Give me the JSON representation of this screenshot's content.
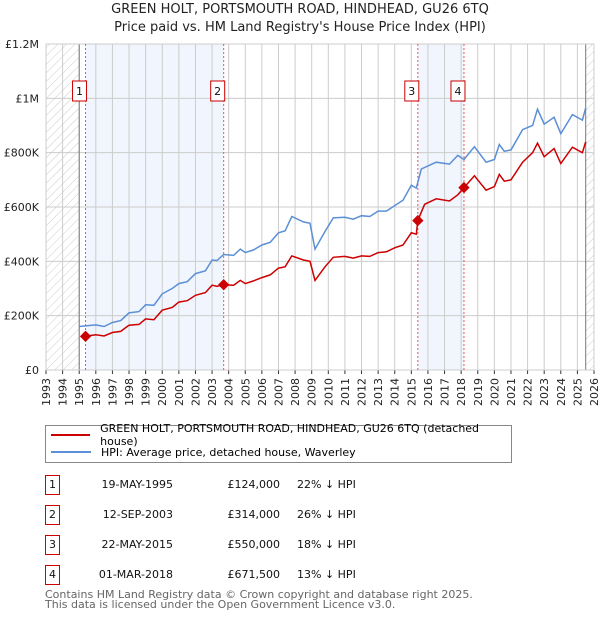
{
  "chart_data": {
    "type": "line",
    "title": "GREEN HOLT, PORTSMOUTH ROAD, HINDHEAD, GU26 6TQ",
    "subtitle": "Price paid vs. HM Land Registry's House Price Index (HPI)",
    "xlim": [
      1993,
      2026
    ],
    "ylim": [
      0,
      1200000
    ],
    "x_ticks": [
      "1993",
      "1994",
      "1995",
      "1996",
      "1997",
      "1998",
      "1999",
      "2000",
      "2001",
      "2002",
      "2003",
      "2004",
      "2005",
      "2006",
      "2007",
      "2008",
      "2009",
      "2010",
      "2011",
      "2012",
      "2013",
      "2014",
      "2015",
      "2016",
      "2017",
      "2018",
      "2019",
      "2020",
      "2021",
      "2022",
      "2023",
      "2024",
      "2025",
      "2026"
    ],
    "y_ticks": [
      {
        "v": 0,
        "label": "£0"
      },
      {
        "v": 200000,
        "label": "£200K"
      },
      {
        "v": 400000,
        "label": "£400K"
      },
      {
        "v": 600000,
        "label": "£600K"
      },
      {
        "v": 800000,
        "label": "£800K"
      },
      {
        "v": 1000000,
        "label": "£1M"
      },
      {
        "v": 1200000,
        "label": "£1.2M"
      }
    ],
    "grid": true,
    "hatched_ranges": [
      [
        1993,
        1995
      ],
      [
        2025.5,
        2026
      ]
    ],
    "shaded_ranges": [
      [
        1995.38,
        2003.7
      ],
      [
        2015.39,
        2018.17
      ]
    ],
    "series": [
      {
        "name": "GREEN HOLT, PORTSMOUTH ROAD, HINDHEAD, GU26 6TQ (detached house)",
        "color": "#cc0000",
        "points": [
          [
            1995.38,
            124000
          ],
          [
            1996,
            130000
          ],
          [
            1996.5,
            125000
          ],
          [
            1997,
            138000
          ],
          [
            1997.5,
            142000
          ],
          [
            1998,
            165000
          ],
          [
            1998.6,
            168000
          ],
          [
            1999,
            188000
          ],
          [
            1999.5,
            185000
          ],
          [
            2000,
            220000
          ],
          [
            2000.6,
            230000
          ],
          [
            2001,
            250000
          ],
          [
            2001.5,
            255000
          ],
          [
            2002,
            275000
          ],
          [
            2002.6,
            285000
          ],
          [
            2003,
            312000
          ],
          [
            2003.3,
            308000
          ],
          [
            2003.7,
            314000
          ],
          [
            2004.3,
            312000
          ],
          [
            2004.7,
            330000
          ],
          [
            2005,
            318000
          ],
          [
            2005.5,
            328000
          ],
          [
            2006,
            340000
          ],
          [
            2006.5,
            350000
          ],
          [
            2007,
            375000
          ],
          [
            2007.4,
            380000
          ],
          [
            2007.8,
            420000
          ],
          [
            2008.5,
            405000
          ],
          [
            2008.9,
            400000
          ],
          [
            2009.2,
            330000
          ],
          [
            2009.8,
            380000
          ],
          [
            2010.3,
            415000
          ],
          [
            2011,
            418000
          ],
          [
            2011.5,
            412000
          ],
          [
            2012,
            420000
          ],
          [
            2012.5,
            418000
          ],
          [
            2013,
            432000
          ],
          [
            2013.5,
            435000
          ],
          [
            2014,
            450000
          ],
          [
            2014.5,
            460000
          ],
          [
            2015,
            505000
          ],
          [
            2015.3,
            500000
          ],
          [
            2015.39,
            550000
          ],
          [
            2015.8,
            610000
          ],
          [
            2016.5,
            630000
          ],
          [
            2017.3,
            622000
          ],
          [
            2017.8,
            645000
          ],
          [
            2018.17,
            671500
          ],
          [
            2018.8,
            715000
          ],
          [
            2019.5,
            662000
          ],
          [
            2020,
            675000
          ],
          [
            2020.3,
            720000
          ],
          [
            2020.6,
            695000
          ],
          [
            2021,
            700000
          ],
          [
            2021.7,
            765000
          ],
          [
            2022.3,
            800000
          ],
          [
            2022.6,
            835000
          ],
          [
            2023,
            785000
          ],
          [
            2023.6,
            815000
          ],
          [
            2024,
            760000
          ],
          [
            2024.7,
            820000
          ],
          [
            2025.3,
            800000
          ],
          [
            2025.5,
            840000
          ]
        ]
      },
      {
        "name": "HPI: Average price, detached house, Waverley",
        "color": "#5b8fd6",
        "points": [
          [
            1995,
            160000
          ],
          [
            1996,
            166000
          ],
          [
            1996.5,
            160000
          ],
          [
            1997,
            175000
          ],
          [
            1997.5,
            182000
          ],
          [
            1998,
            210000
          ],
          [
            1998.6,
            215000
          ],
          [
            1999,
            240000
          ],
          [
            1999.5,
            238000
          ],
          [
            2000,
            280000
          ],
          [
            2000.6,
            300000
          ],
          [
            2001,
            318000
          ],
          [
            2001.5,
            325000
          ],
          [
            2002,
            355000
          ],
          [
            2002.6,
            365000
          ],
          [
            2003,
            405000
          ],
          [
            2003.3,
            403000
          ],
          [
            2003.7,
            425000
          ],
          [
            2004.3,
            422000
          ],
          [
            2004.7,
            445000
          ],
          [
            2005,
            432000
          ],
          [
            2005.5,
            442000
          ],
          [
            2006,
            460000
          ],
          [
            2006.5,
            470000
          ],
          [
            2007,
            505000
          ],
          [
            2007.4,
            512000
          ],
          [
            2007.8,
            565000
          ],
          [
            2008.5,
            545000
          ],
          [
            2008.9,
            540000
          ],
          [
            2009.2,
            445000
          ],
          [
            2009.8,
            510000
          ],
          [
            2010.3,
            560000
          ],
          [
            2011,
            562000
          ],
          [
            2011.5,
            555000
          ],
          [
            2012,
            568000
          ],
          [
            2012.5,
            565000
          ],
          [
            2013,
            585000
          ],
          [
            2013.5,
            585000
          ],
          [
            2014,
            605000
          ],
          [
            2014.5,
            625000
          ],
          [
            2015,
            680000
          ],
          [
            2015.3,
            670000
          ],
          [
            2015.6,
            740000
          ],
          [
            2016.5,
            765000
          ],
          [
            2017.3,
            758000
          ],
          [
            2017.8,
            790000
          ],
          [
            2018.17,
            775000
          ],
          [
            2018.8,
            822000
          ],
          [
            2019.5,
            765000
          ],
          [
            2020,
            775000
          ],
          [
            2020.3,
            830000
          ],
          [
            2020.6,
            805000
          ],
          [
            2021,
            810000
          ],
          [
            2021.7,
            885000
          ],
          [
            2022.3,
            900000
          ],
          [
            2022.6,
            960000
          ],
          [
            2023,
            905000
          ],
          [
            2023.6,
            930000
          ],
          [
            2024,
            870000
          ],
          [
            2024.7,
            940000
          ],
          [
            2025.3,
            920000
          ],
          [
            2025.5,
            965000
          ]
        ]
      }
    ],
    "sales": [
      {
        "n": "1",
        "x": 1995.38,
        "price": 124000,
        "date": "19-MAY-1995",
        "price_label": "£124,000",
        "hpi": "22% ↓ HPI"
      },
      {
        "n": "2",
        "x": 2003.7,
        "price": 314000,
        "date": "12-SEP-2003",
        "price_label": "£314,000",
        "hpi": "26% ↓ HPI"
      },
      {
        "n": "3",
        "x": 2015.39,
        "price": 550000,
        "date": "22-MAY-2015",
        "price_label": "£550,000",
        "hpi": "18% ↓ HPI"
      },
      {
        "n": "4",
        "x": 2018.17,
        "price": 671500,
        "date": "01-MAR-2018",
        "price_label": "£671,500",
        "hpi": "13% ↓ HPI"
      }
    ]
  },
  "footer": {
    "line1": "Contains HM Land Registry data © Crown copyright and database right 2025.",
    "line2": "This data is licensed under the Open Government Licence v3.0."
  }
}
